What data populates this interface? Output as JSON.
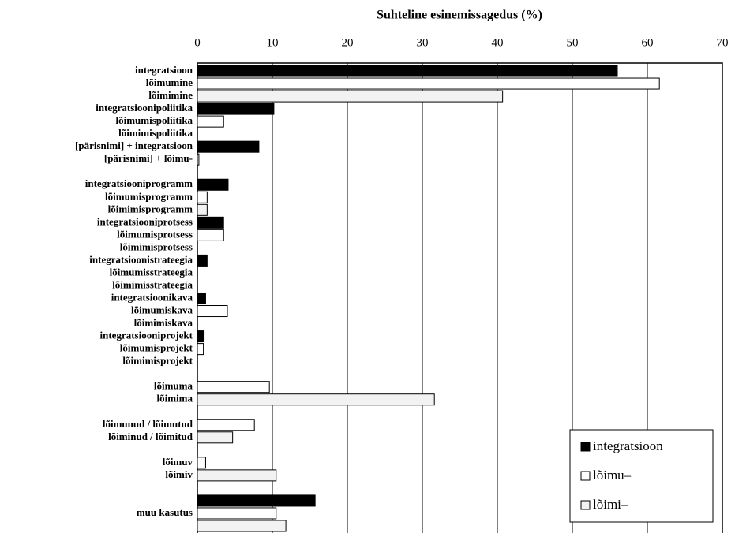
{
  "chart_data": {
    "type": "bar",
    "orientation": "horizontal",
    "x_label": "Suhteline esinemissagedus (%)",
    "categories": [
      "integratsioon",
      "lõimumine",
      "lõimimine",
      "integratsioonipoliitika",
      "lõimumispoliitika",
      "lõimimispoliitika",
      "[pärisnimi] + integratsioon",
      "[pärisnimi] + lõimu-",
      null,
      "integratsiooniprogramm",
      "lõimumisprogramm",
      "lõimimisprogramm",
      "integratsiooniprotsess",
      "lõimumisprotsess",
      "lõimimisprotsess",
      "integratsioonistrateegia",
      "lõimumisstrateegia",
      "lõimimisstrateegia",
      "integratsioonikava",
      "lõimumiskava",
      "lõimimiskava",
      "integratsiooniprojekt",
      "lõimumisprojekt",
      "lõimimisprojekt",
      null,
      "lõimuma",
      "lõimima",
      null,
      "lõimunud / lõimutud",
      "lõiminud / lõimitud",
      null,
      "lõimuv",
      "lõimiv",
      null,
      null,
      "muu kasutus",
      null
    ],
    "series": [
      {
        "name": "integratsioon",
        "color": "#000000",
        "values": [
          56,
          null,
          null,
          10.2,
          null,
          null,
          8.2,
          null,
          null,
          4.1,
          null,
          null,
          3.5,
          null,
          null,
          1.3,
          null,
          null,
          1.1,
          null,
          null,
          0.9,
          null,
          null,
          null,
          null,
          null,
          null,
          null,
          null,
          null,
          null,
          null,
          null,
          15.7,
          null,
          null
        ]
      },
      {
        "name": "lõimu–",
        "color": "#ffffff",
        "values": [
          null,
          61.6,
          null,
          null,
          3.5,
          null,
          null,
          0.2,
          null,
          null,
          1.3,
          null,
          null,
          3.5,
          null,
          null,
          0,
          null,
          null,
          4.0,
          null,
          null,
          0.8,
          null,
          null,
          9.6,
          null,
          null,
          7.6,
          null,
          null,
          1.1,
          null,
          null,
          null,
          10.5,
          null
        ]
      },
      {
        "name": "lõimi–",
        "color": "#f2f2f2",
        "values": [
          null,
          null,
          40.7,
          null,
          null,
          0,
          null,
          null,
          null,
          null,
          null,
          1.3,
          null,
          null,
          0,
          null,
          null,
          0,
          null,
          null,
          0,
          null,
          null,
          0,
          null,
          null,
          31.6,
          null,
          null,
          4.7,
          null,
          null,
          10.5,
          null,
          null,
          null,
          11.8
        ]
      }
    ],
    "xlim": [
      0,
      70
    ],
    "xticks": [
      0,
      10,
      20,
      30,
      40,
      50,
      60,
      70
    ],
    "grid": true,
    "legend": "lower right"
  }
}
